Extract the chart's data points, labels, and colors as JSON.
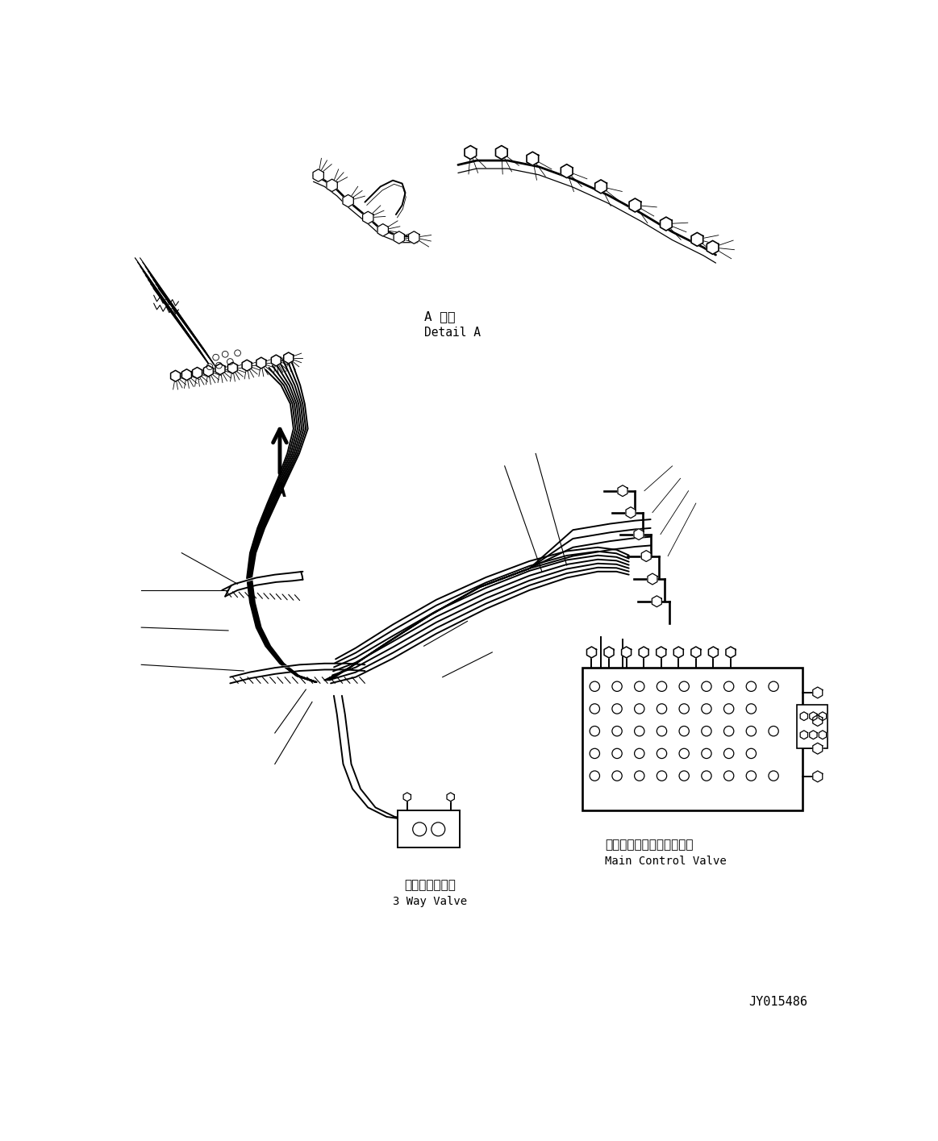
{
  "background_color": "#ffffff",
  "line_color": "#000000",
  "text_color": "#000000",
  "label_detail_a_jp": "A 詳細",
  "label_detail_a_en": "Detail A",
  "label_3way_jp": "３ウェイバルブ",
  "label_3way_en": "3 Way Valve",
  "label_mcv_jp": "メインコントロールバルブ",
  "label_mcv_en": "Main Control Valve",
  "label_a": "A",
  "ref_number": "JY015486"
}
